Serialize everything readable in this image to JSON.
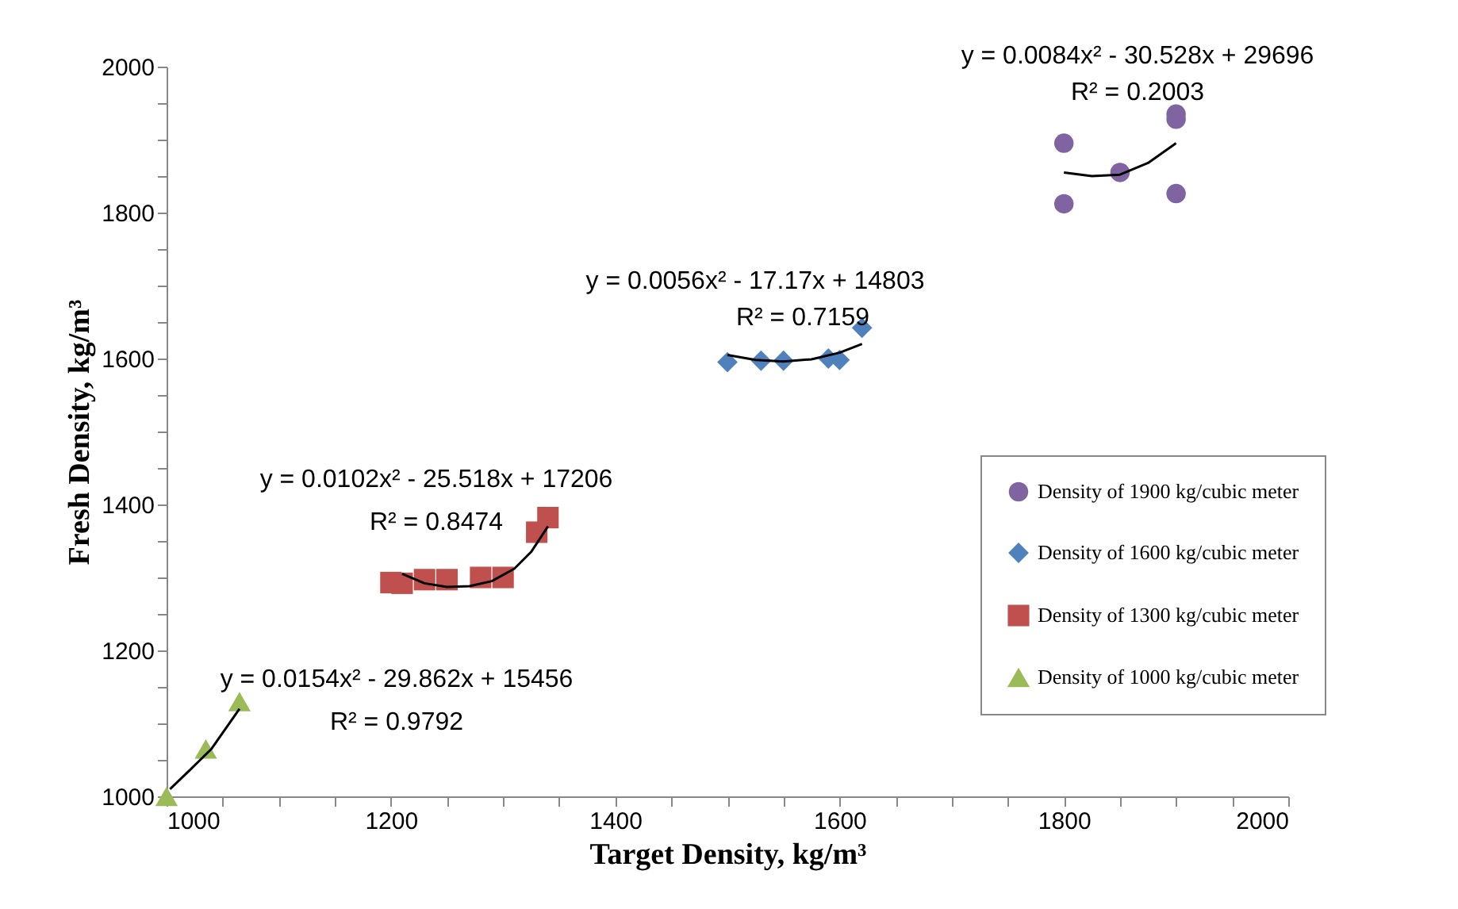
{
  "chart_data": {
    "type": "scatter",
    "xlabel": "Target Density, kg/m³",
    "ylabel": "Fresh Density, kg/m³",
    "xlim": [
      1000,
      2000
    ],
    "ylim": [
      1000,
      2000
    ],
    "xticks": [
      1000,
      {
        "value": 1050,
        "label": null
      },
      {
        "value": 1100,
        "label": null
      },
      {
        "value": 1150,
        "label": null
      },
      1200,
      {
        "value": 1250,
        "label": null
      },
      {
        "value": 1300,
        "label": null
      },
      {
        "value": 1350,
        "label": null
      },
      1400,
      {
        "value": 1450,
        "label": null
      },
      {
        "value": 1500,
        "label": null
      },
      {
        "value": 1550,
        "label": null
      },
      1600,
      {
        "value": 1650,
        "label": null
      },
      {
        "value": 1700,
        "label": null
      },
      {
        "value": 1750,
        "label": null
      },
      1800,
      {
        "value": 1850,
        "label": null
      },
      {
        "value": 1900,
        "label": null
      },
      {
        "value": 1950,
        "label": null
      },
      2000
    ],
    "yticks": [
      1000,
      {
        "value": 1050,
        "label": null
      },
      {
        "value": 1100,
        "label": null
      },
      {
        "value": 1150,
        "label": null
      },
      1200,
      {
        "value": 1250,
        "label": null
      },
      {
        "value": 1300,
        "label": null
      },
      {
        "value": 1350,
        "label": null
      },
      1400,
      {
        "value": 1450,
        "label": null
      },
      {
        "value": 1500,
        "label": null
      },
      {
        "value": 1550,
        "label": null
      },
      1600,
      {
        "value": 1650,
        "label": null
      },
      {
        "value": 1700,
        "label": null
      },
      {
        "value": 1750,
        "label": null
      },
      1800,
      {
        "value": 1850,
        "label": null
      },
      {
        "value": 1900,
        "label": null
      },
      {
        "value": 1950,
        "label": null
      },
      2000
    ],
    "grid": false,
    "legend": "right",
    "series": [
      {
        "name": "Density of 1900 kg/cubic meter",
        "color": "#8064a2",
        "marker": "circle",
        "x": [
          1800,
          1800,
          1850,
          1900,
          1900,
          1900
        ],
        "values": [
          1895,
          1812,
          1855,
          1935,
          1928,
          1826
        ]
      },
      {
        "name": "Density of 1600 kg/cubic meter",
        "color": "#4f81bd",
        "marker": "diamond",
        "x": [
          1500,
          1530,
          1550,
          1590,
          1600,
          1620
        ],
        "values": [
          1595,
          1597,
          1597,
          1600,
          1598,
          1642
        ]
      },
      {
        "name": "Density of 1300 kg/cubic meter",
        "color": "#c0504d",
        "marker": "square",
        "x": [
          1200,
          1210,
          1230,
          1250,
          1280,
          1300,
          1330,
          1340
        ],
        "values": [
          1293,
          1292,
          1297,
          1297,
          1300,
          1300,
          1362,
          1382
        ]
      },
      {
        "name": "Density of 1000 kg/cubic meter",
        "color": "#9bbb59",
        "marker": "triangle",
        "x": [
          1000,
          1035,
          1065
        ],
        "values": [
          1000,
          1065,
          1130
        ]
      },
      {
        "type": "line",
        "color": "#000000",
        "marker": "none",
        "x": [
          1800,
          1825,
          1850,
          1875,
          1900
        ],
        "values": [
          1855,
          1850,
          1852,
          1868,
          1895
        ]
      },
      {
        "type": "line",
        "color": "#000000",
        "marker": "none",
        "x": [
          1500,
          1525,
          1550,
          1575,
          1600,
          1620
        ],
        "values": [
          1605,
          1598,
          1596,
          1599,
          1608,
          1620
        ]
      },
      {
        "type": "line",
        "color": "#000000",
        "marker": "none",
        "x": [
          1210,
          1230,
          1250,
          1270,
          1290,
          1310,
          1325,
          1340
        ],
        "values": [
          1305,
          1292,
          1287,
          1288,
          1295,
          1312,
          1335,
          1370
        ]
      },
      {
        "type": "line",
        "color": "#000000",
        "marker": "none",
        "x": [
          1003,
          1020,
          1040,
          1065
        ],
        "values": [
          1010,
          1035,
          1065,
          1120
        ]
      }
    ],
    "annotations": [
      "y = 0.0084x² - 30.528x + 29696",
      "R² = 0.2003",
      "y = 0.0056x² - 17.17x + 14803",
      "R² = 0.7159",
      "y = 0.0102x² - 25.518x + 17206",
      "R² = 0.8474",
      "y = 0.0154x² - 29.862x + 15456",
      "R² = 0.9792"
    ]
  }
}
